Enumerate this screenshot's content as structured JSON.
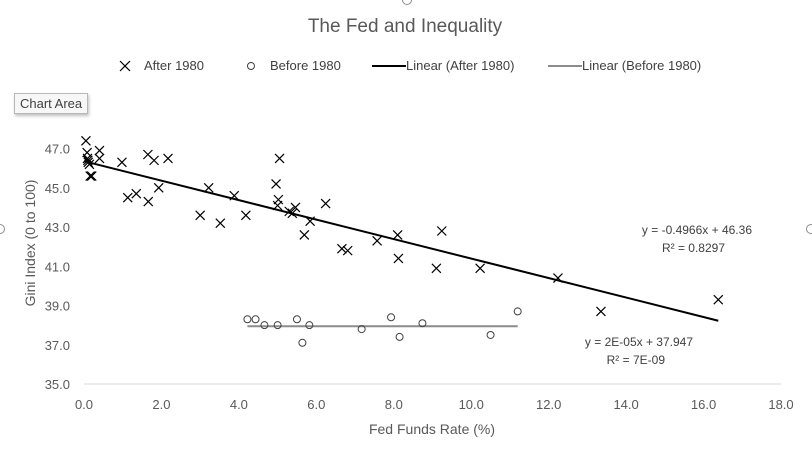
{
  "tooltip": {
    "label": "Chart Area"
  },
  "colors": {
    "after": "#000000",
    "before_line": "#8c8c8c",
    "before_marker": "#404040",
    "axis": "#d9d9d9",
    "text": "#595959"
  },
  "chart_data": {
    "type": "scatter",
    "title": "The Fed and Inequality",
    "xlabel": "Fed Funds Rate (%)",
    "ylabel": "Gini Index (0 to 100)",
    "xlim": [
      0,
      18
    ],
    "ylim": [
      35,
      48
    ],
    "xticks": [
      0,
      2,
      4,
      6,
      8,
      10,
      12,
      14,
      16,
      18
    ],
    "xtick_labels": [
      "0.0",
      "2.0",
      "4.0",
      "6.0",
      "8.0",
      "10.0",
      "12.0",
      "14.0",
      "16.0",
      "18.0"
    ],
    "yticks": [
      35,
      37,
      39,
      41,
      43,
      45,
      47
    ],
    "ytick_labels": [
      "35.0",
      "37.0",
      "39.0",
      "41.0",
      "43.0",
      "45.0",
      "47.0"
    ],
    "grid": false,
    "legend": {
      "position": "top",
      "entries": [
        "After 1980",
        "Before 1980",
        "Linear (After 1980)",
        "Linear (Before 1980)"
      ]
    },
    "series": [
      {
        "name": "After 1980",
        "marker": "x",
        "points": [
          [
            0.05,
            47.4
          ],
          [
            0.08,
            46.8
          ],
          [
            0.09,
            46.5
          ],
          [
            0.1,
            46.4
          ],
          [
            0.11,
            46.3
          ],
          [
            0.14,
            46.2
          ],
          [
            0.16,
            45.6
          ],
          [
            0.2,
            45.6
          ],
          [
            0.4,
            46.9
          ],
          [
            0.4,
            46.5
          ],
          [
            0.98,
            46.3
          ],
          [
            1.13,
            44.5
          ],
          [
            1.35,
            44.7
          ],
          [
            1.65,
            46.7
          ],
          [
            1.66,
            44.3
          ],
          [
            1.81,
            46.4
          ],
          [
            1.93,
            45.0
          ],
          [
            2.17,
            46.5
          ],
          [
            3.0,
            43.6
          ],
          [
            3.22,
            45.0
          ],
          [
            3.52,
            43.2
          ],
          [
            3.88,
            44.6
          ],
          [
            4.18,
            43.6
          ],
          [
            4.96,
            45.2
          ],
          [
            5.02,
            44.4
          ],
          [
            5.0,
            44.1
          ],
          [
            5.05,
            46.5
          ],
          [
            5.3,
            43.8
          ],
          [
            5.38,
            43.7
          ],
          [
            5.46,
            44.0
          ],
          [
            5.69,
            42.6
          ],
          [
            5.84,
            43.3
          ],
          [
            6.24,
            44.2
          ],
          [
            6.66,
            41.9
          ],
          [
            6.81,
            41.8
          ],
          [
            7.57,
            42.3
          ],
          [
            8.1,
            42.6
          ],
          [
            8.12,
            41.4
          ],
          [
            9.1,
            40.9
          ],
          [
            9.24,
            42.8
          ],
          [
            10.23,
            40.9
          ],
          [
            12.24,
            40.4
          ],
          [
            13.35,
            38.7
          ],
          [
            16.38,
            39.3
          ]
        ]
      },
      {
        "name": "Before 1980",
        "marker": "o",
        "points": [
          [
            4.22,
            38.3
          ],
          [
            4.43,
            38.3
          ],
          [
            4.66,
            38.0
          ],
          [
            5.0,
            38.0
          ],
          [
            5.5,
            38.3
          ],
          [
            5.64,
            37.1
          ],
          [
            5.82,
            38.0
          ],
          [
            7.17,
            37.8
          ],
          [
            7.93,
            38.4
          ],
          [
            8.15,
            37.4
          ],
          [
            8.74,
            38.1
          ],
          [
            10.5,
            37.5
          ],
          [
            11.2,
            38.7
          ]
        ]
      }
    ],
    "trendlines": [
      {
        "name": "Linear (After 1980)",
        "slope": -0.4966,
        "intercept": 46.36,
        "x_range": [
          0,
          16.38
        ],
        "equation": "y = -0.4966x + 46.36",
        "r2": "R² = 0.8297"
      },
      {
        "name": "Linear (Before 1980)",
        "slope": 2e-05,
        "intercept": 37.947,
        "x_range": [
          4.22,
          11.2
        ],
        "equation": "y = 2E-05x + 37.947",
        "r2": "R² = 7E-09"
      }
    ]
  }
}
